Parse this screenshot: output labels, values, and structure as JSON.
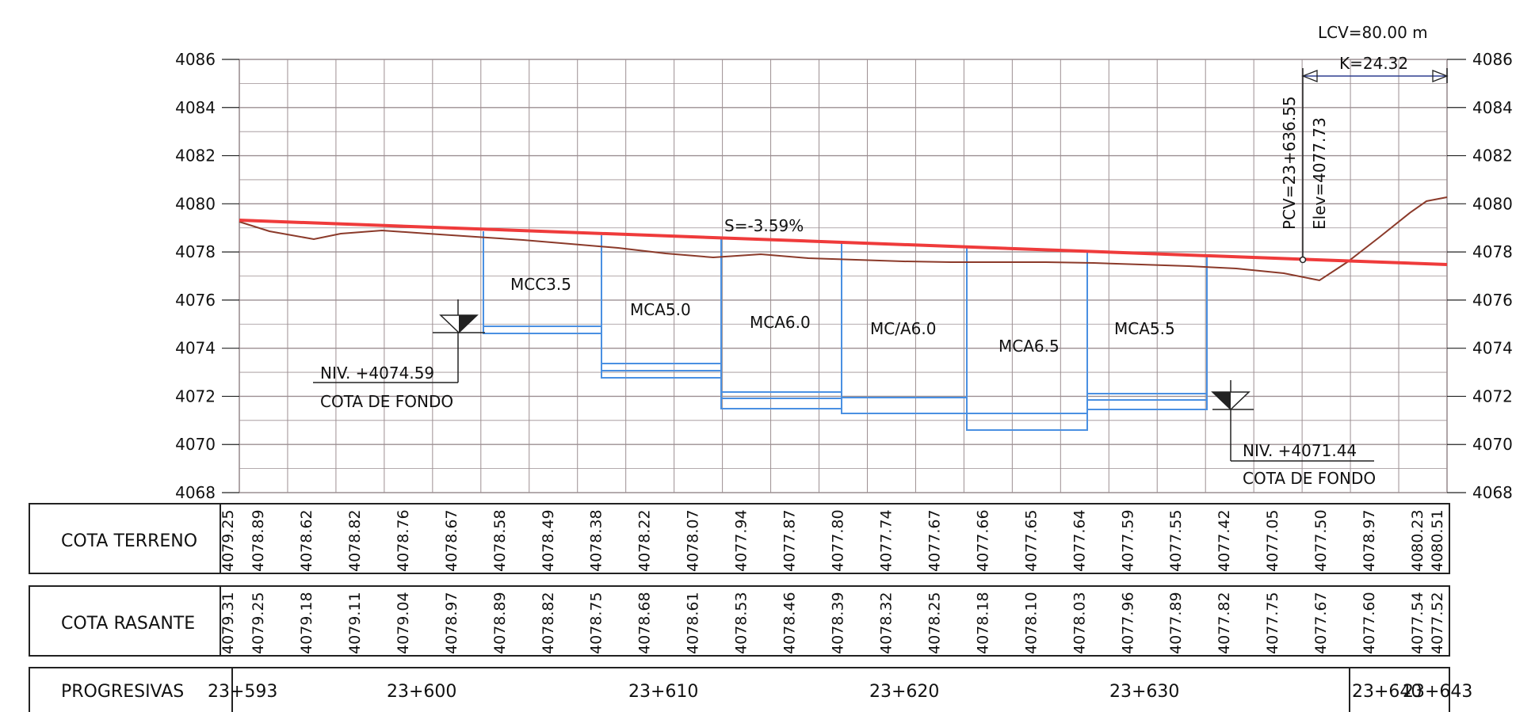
{
  "profile": {
    "y_ticks": [
      4086,
      4084,
      4082,
      4080,
      4078,
      4076,
      4074,
      4072,
      4070,
      4068
    ],
    "curve_length": "LCV=80.00 m",
    "k_value": "K=24.32",
    "pcv_station": "PCV=23+636.55",
    "pcv_elevation": "Elev=4077.73",
    "slope": "S=-3.59%",
    "left_level": {
      "value": "NIV. +4074.59",
      "caption": "COTA DE FONDO"
    },
    "right_level": {
      "value": "NIV. +4071.44",
      "caption": "COTA DE FONDO"
    },
    "structures": [
      "MCC3.5",
      "MCA5.0",
      "MCA6.0",
      "MC/A6.0",
      "MCA6.5",
      "MCA5.5"
    ],
    "colors": {
      "grid": "#9c8f92",
      "terrain": "#8b3a2a",
      "grade_line": "#ef3b3b",
      "structure": "#4a90e2"
    }
  },
  "table": {
    "terrain": {
      "title": "COTA TERRENO",
      "values": [
        "4079.25",
        "4078.89",
        "4078.62",
        "4078.82",
        "4078.76",
        "4078.67",
        "4078.58",
        "4078.49",
        "4078.38",
        "4078.22",
        "4078.07",
        "4077.94",
        "4077.87",
        "4077.80",
        "4077.74",
        "4077.67",
        "4077.66",
        "4077.65",
        "4077.64",
        "4077.59",
        "4077.55",
        "4077.42",
        "4077.05",
        "4077.50",
        "4078.97",
        "4080.23",
        "4080.51"
      ]
    },
    "grade": {
      "title": "COTA RASANTE",
      "values": [
        "4079.31",
        "4079.25",
        "4079.18",
        "4079.11",
        "4079.04",
        "4078.97",
        "4078.89",
        "4078.82",
        "4078.75",
        "4078.68",
        "4078.61",
        "4078.53",
        "4078.46",
        "4078.39",
        "4078.32",
        "4078.25",
        "4078.18",
        "4078.10",
        "4078.03",
        "4077.96",
        "4077.89",
        "4077.82",
        "4077.75",
        "4077.67",
        "4077.60",
        "4077.54",
        "4077.52"
      ]
    },
    "stations": {
      "title": "PROGRESIVAS",
      "labels": [
        "23+593",
        "23+600",
        "23+610",
        "23+620",
        "23+630",
        "23+640",
        "23+643"
      ]
    }
  }
}
